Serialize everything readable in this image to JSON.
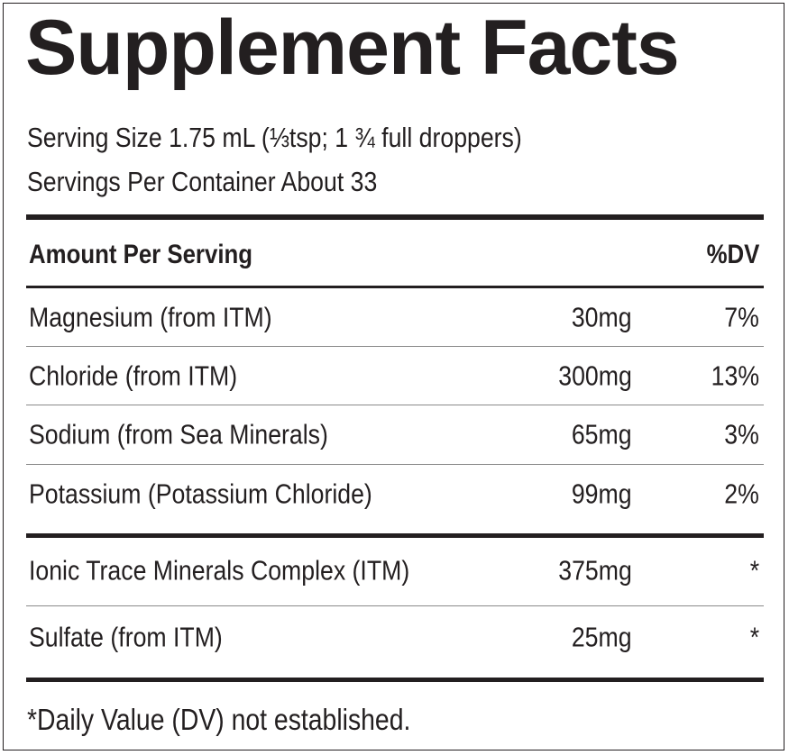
{
  "title": "Supplement Facts",
  "serving_size": "Serving Size 1.75 mL (⅓tsp; 1 ¾ full droppers)",
  "servings_per_container": "Servings Per Container About 33",
  "header": {
    "amount_label": "Amount Per Serving",
    "dv_label": "%DV"
  },
  "nutrients": [
    {
      "name": "Magnesium (from ITM)",
      "amount": "30mg",
      "dv": "7%"
    },
    {
      "name": "Chloride (from ITM)",
      "amount": "300mg",
      "dv": "13%"
    },
    {
      "name": "Sodium (from Sea Minerals)",
      "amount": "65mg",
      "dv": "3%"
    },
    {
      "name": "Potassium (Potassium Chloride)",
      "amount": "99mg",
      "dv": "2%"
    }
  ],
  "other_ingredients": [
    {
      "name": "Ionic Trace Minerals Complex (ITM)",
      "amount": "375mg",
      "dv": "*"
    },
    {
      "name": "Sulfate (from ITM)",
      "amount": "25mg",
      "dv": "*"
    }
  ],
  "footnote": "*Daily Value (DV) not established."
}
